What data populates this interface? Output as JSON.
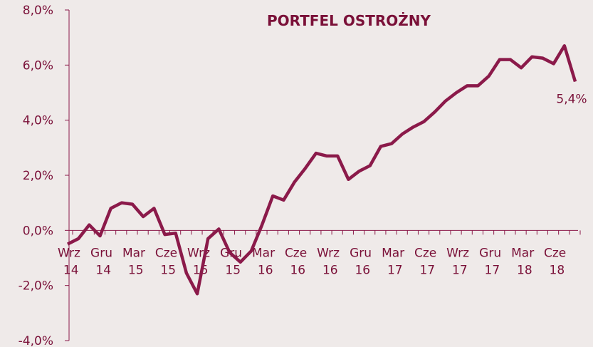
{
  "chart_data": {
    "type": "line",
    "title": "PORTFEL OSTROŻNY",
    "categories": [
      "Wrz 14",
      null,
      null,
      "Gru 14",
      null,
      null,
      "Mar 15",
      null,
      null,
      "Cze 15",
      null,
      null,
      "Wrz 15",
      null,
      null,
      "Gru 15",
      null,
      null,
      "Mar 16",
      null,
      null,
      "Cze 16",
      null,
      null,
      "Wrz 16",
      null,
      null,
      "Gru 16",
      null,
      null,
      "Mar 17",
      null,
      null,
      "Cze 17",
      null,
      null,
      "Wrz 17",
      null,
      null,
      "Gru 17",
      null,
      null,
      "Mar 18",
      null,
      null,
      "Cze 18",
      null,
      null
    ],
    "series": [
      {
        "name": "PORTFEL OSTROŻNY",
        "color": "#8b1a4a",
        "values": [
          -0.5,
          -0.3,
          0.2,
          -0.2,
          0.8,
          1.0,
          0.95,
          0.5,
          0.8,
          -0.15,
          -0.1,
          -1.55,
          -2.3,
          -0.3,
          0.05,
          -0.8,
          -1.15,
          -0.75,
          0.2,
          1.25,
          1.1,
          1.75,
          2.25,
          2.8,
          2.7,
          2.7,
          1.85,
          2.15,
          2.35,
          3.05,
          3.15,
          3.5,
          3.75,
          3.95,
          4.3,
          4.7,
          5.0,
          5.25,
          5.25,
          5.6,
          6.2,
          6.2,
          5.9,
          6.3,
          6.25,
          6.05,
          6.7,
          5.4
        ],
        "value_labels": [
          null,
          null,
          null,
          null,
          null,
          null,
          null,
          null,
          null,
          null,
          null,
          null,
          null,
          null,
          null,
          null,
          null,
          null,
          null,
          null,
          null,
          null,
          null,
          null,
          null,
          null,
          null,
          null,
          null,
          null,
          null,
          null,
          null,
          null,
          null,
          null,
          null,
          null,
          null,
          null,
          null,
          null,
          null,
          null,
          null,
          null,
          null,
          "5,4%"
        ]
      }
    ],
    "ylim": [
      -4,
      8
    ],
    "yticks": [
      {
        "value": -4,
        "label": "-4,0%"
      },
      {
        "value": -2,
        "label": "-2,0%"
      },
      {
        "value": 0,
        "label": "0,0%"
      },
      {
        "value": 2,
        "label": "2,0%"
      },
      {
        "value": 4,
        "label": "4,0%"
      },
      {
        "value": 6,
        "label": "6,0%"
      },
      {
        "value": 8,
        "label": "8,0%"
      }
    ]
  }
}
